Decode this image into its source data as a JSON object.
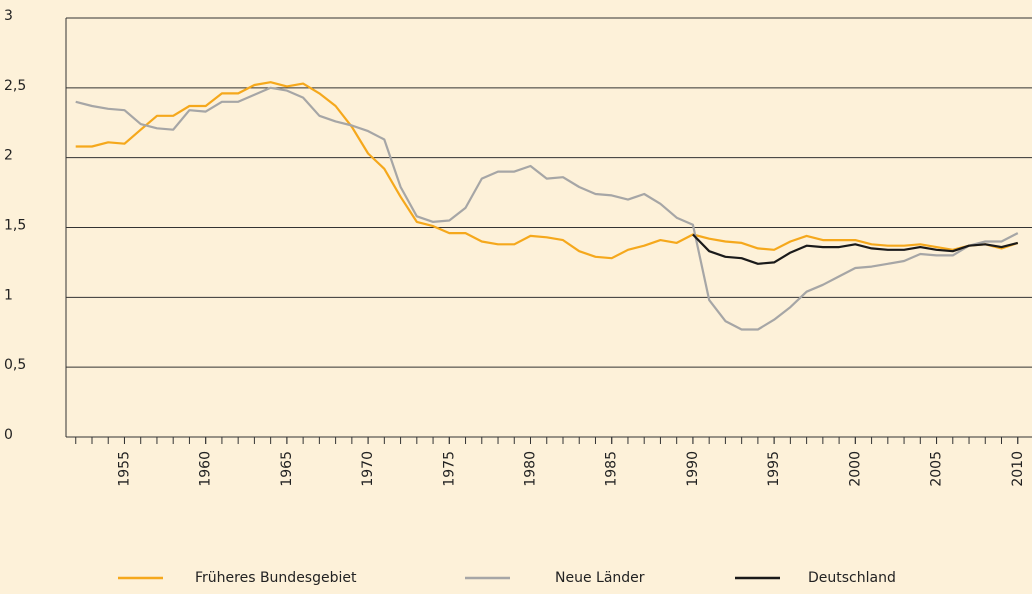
{
  "chart_data": {
    "type": "line",
    "x": [
      1952,
      1953,
      1954,
      1955,
      1956,
      1957,
      1958,
      1959,
      1960,
      1961,
      1962,
      1963,
      1964,
      1965,
      1966,
      1967,
      1968,
      1969,
      1970,
      1971,
      1972,
      1973,
      1974,
      1975,
      1976,
      1977,
      1978,
      1979,
      1980,
      1981,
      1982,
      1983,
      1984,
      1985,
      1986,
      1987,
      1988,
      1989,
      1990,
      1991,
      1992,
      1993,
      1994,
      1995,
      1996,
      1997,
      1998,
      1999,
      2000,
      2001,
      2002,
      2003,
      2004,
      2005,
      2006,
      2007,
      2008,
      2009,
      2010
    ],
    "series": [
      {
        "name": "Früheres Bundesgebiet",
        "color": "#f5a81c",
        "values": [
          2.08,
          2.08,
          2.11,
          2.1,
          2.2,
          2.3,
          2.3,
          2.37,
          2.37,
          2.46,
          2.46,
          2.52,
          2.54,
          2.51,
          2.53,
          2.46,
          2.37,
          2.22,
          2.03,
          1.92,
          1.72,
          1.54,
          1.51,
          1.46,
          1.46,
          1.4,
          1.38,
          1.38,
          1.44,
          1.43,
          1.41,
          1.33,
          1.29,
          1.28,
          1.34,
          1.37,
          1.41,
          1.39,
          1.45,
          1.42,
          1.4,
          1.39,
          1.35,
          1.34,
          1.4,
          1.44,
          1.41,
          1.41,
          1.41,
          1.38,
          1.37,
          1.37,
          1.38,
          1.36,
          1.34,
          1.37,
          1.38,
          1.35,
          1.39
        ]
      },
      {
        "name": "Neue Länder",
        "color": "#a6a6a6",
        "values": [
          2.4,
          2.37,
          2.35,
          2.34,
          2.24,
          2.21,
          2.2,
          2.34,
          2.33,
          2.4,
          2.4,
          2.45,
          2.5,
          2.48,
          2.43,
          2.3,
          2.26,
          2.23,
          2.19,
          2.13,
          1.79,
          1.58,
          1.54,
          1.55,
          1.64,
          1.85,
          1.9,
          1.9,
          1.94,
          1.85,
          1.86,
          1.79,
          1.74,
          1.73,
          1.7,
          1.74,
          1.67,
          1.57,
          1.52,
          0.98,
          0.83,
          0.77,
          0.77,
          0.84,
          0.93,
          1.04,
          1.09,
          1.15,
          1.21,
          1.22,
          1.24,
          1.26,
          1.31,
          1.3,
          1.3,
          1.37,
          1.4,
          1.4,
          1.46
        ]
      },
      {
        "name": "Deutschland",
        "color": "#1a1a1a",
        "values": [
          null,
          null,
          null,
          null,
          null,
          null,
          null,
          null,
          null,
          null,
          null,
          null,
          null,
          null,
          null,
          null,
          null,
          null,
          null,
          null,
          null,
          null,
          null,
          null,
          null,
          null,
          null,
          null,
          null,
          null,
          null,
          null,
          null,
          null,
          null,
          null,
          null,
          null,
          1.45,
          1.33,
          1.29,
          1.28,
          1.24,
          1.25,
          1.32,
          1.37,
          1.36,
          1.36,
          1.38,
          1.35,
          1.34,
          1.34,
          1.36,
          1.34,
          1.33,
          1.37,
          1.38,
          1.36,
          1.39
        ]
      }
    ],
    "xlim": [
      1951.4,
      2010.2
    ],
    "xticks": [
      1955,
      1960,
      1965,
      1970,
      1975,
      1980,
      1985,
      1990,
      1995,
      2000,
      2005,
      2010
    ],
    "ylim": [
      0,
      3
    ],
    "yticks": [
      0,
      {
        "value": 0.5,
        "label": "0,5"
      },
      1,
      {
        "value": 1.5,
        "label": "1,5"
      },
      2,
      {
        "value": 2.5,
        "label": "2,5"
      },
      3
    ],
    "grid": true,
    "legend": "bottom"
  }
}
